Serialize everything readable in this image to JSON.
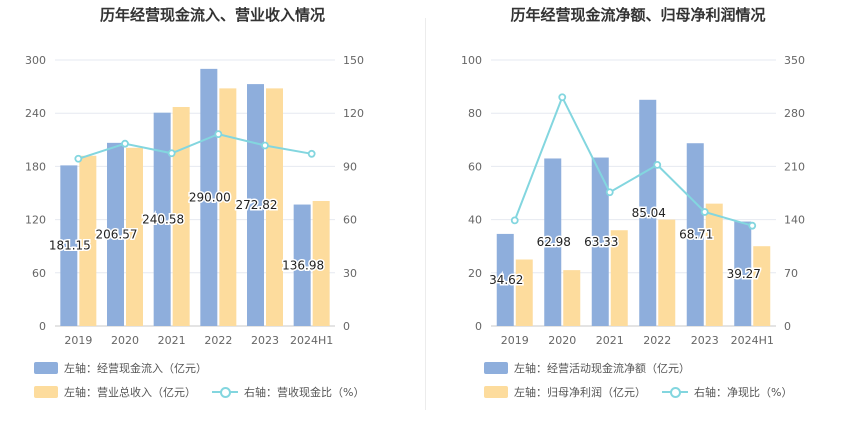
{
  "chart_data": [
    {
      "id": "left",
      "type": "bar",
      "title": "历年经营现金流入、营业收入情况",
      "categories": [
        "2019",
        "2020",
        "2021",
        "2022",
        "2023",
        "2024H1"
      ],
      "left_axis": {
        "ticks": [
          "0",
          "60",
          "120",
          "180",
          "240",
          "300"
        ],
        "ylim": [
          0,
          300
        ]
      },
      "right_axis": {
        "ticks": [
          "0",
          "30",
          "60",
          "90",
          "120",
          "150"
        ],
        "ylim": [
          0,
          150
        ]
      },
      "series": [
        {
          "name": "左轴：经营现金流入（亿元）",
          "type": "bar",
          "axis": "left",
          "color": "#8eaedc",
          "values": [
            181.15,
            206.57,
            240.58,
            290.0,
            272.82,
            136.98
          ],
          "labels": [
            "181.15",
            "206.57",
            "240.58",
            "290.00",
            "272.82",
            "136.98"
          ]
        },
        {
          "name": "左轴：营业总收入（亿元）",
          "type": "bar",
          "axis": "left",
          "color": "#fddc9d",
          "values": [
            192,
            201,
            247,
            268,
            268,
            141
          ]
        },
        {
          "name": "右轴：营收现金比（%）",
          "type": "line",
          "axis": "right",
          "color": "#83d6df",
          "values": [
            94.3,
            102.8,
            97.4,
            108.2,
            101.8,
            97.1
          ]
        }
      ],
      "legend": "bottom-left"
    },
    {
      "id": "right",
      "type": "bar",
      "title": "历年经营现金流净额、归母净利润情况",
      "categories": [
        "2019",
        "2020",
        "2021",
        "2022",
        "2023",
        "2024H1"
      ],
      "left_axis": {
        "ticks": [
          "0",
          "20",
          "40",
          "60",
          "80",
          "100"
        ],
        "ylim": [
          0,
          100
        ]
      },
      "right_axis": {
        "ticks": [
          "0",
          "70",
          "140",
          "210",
          "280",
          "350"
        ],
        "ylim": [
          0,
          350
        ]
      },
      "series": [
        {
          "name": "左轴：经营活动现金流净额（亿元）",
          "type": "bar",
          "axis": "left",
          "color": "#8eaedc",
          "values": [
            34.62,
            62.98,
            63.33,
            85.04,
            68.71,
            39.27
          ],
          "labels": [
            "34.62",
            "62.98",
            "63.33",
            "85.04",
            "68.71",
            "39.27"
          ]
        },
        {
          "name": "左轴：归母净利润（亿元）",
          "type": "bar",
          "axis": "left",
          "color": "#fddc9d",
          "values": [
            25,
            21,
            36,
            40,
            46,
            30
          ]
        },
        {
          "name": "右轴：净现比（%）",
          "type": "line",
          "axis": "right",
          "color": "#83d6df",
          "values": [
            139,
            301,
            176,
            212,
            150,
            132
          ]
        }
      ],
      "legend": "bottom-left"
    }
  ]
}
